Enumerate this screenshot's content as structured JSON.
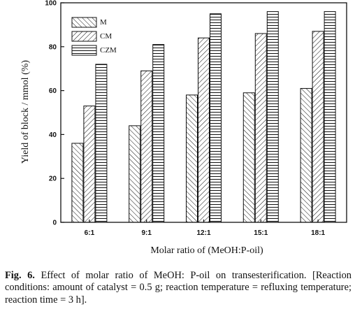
{
  "chart_data": {
    "type": "bar",
    "categories": [
      "6:1",
      "9:1",
      "12:1",
      "15:1",
      "18:1"
    ],
    "series": [
      {
        "name": "M",
        "values": [
          36,
          44,
          58,
          59,
          61
        ],
        "pattern": "diagonal-hatch-right"
      },
      {
        "name": "CM",
        "values": [
          53,
          69,
          84,
          86,
          87
        ],
        "pattern": "diagonal-hatch-left"
      },
      {
        "name": "CZM",
        "values": [
          72,
          81,
          95,
          96,
          96
        ],
        "pattern": "horizontal-stripes"
      }
    ],
    "xlabel": "Molar ratio of (MeOH:P-oil)",
    "ylabel": "Yield of block / mmol (%)",
    "ylim": [
      0,
      100
    ],
    "yticks": [
      0,
      20,
      40,
      60,
      80,
      100
    ],
    "grid": false,
    "legend_position": "top-left"
  },
  "caption": {
    "label": "Fig. 6.",
    "text": "Effect of molar ratio of MeOH: P-oil on transesterification. [Reaction conditions: amount of catalyst = 0.5 g; reaction temperature = refluxing temperature; reaction time = 3 h]."
  }
}
